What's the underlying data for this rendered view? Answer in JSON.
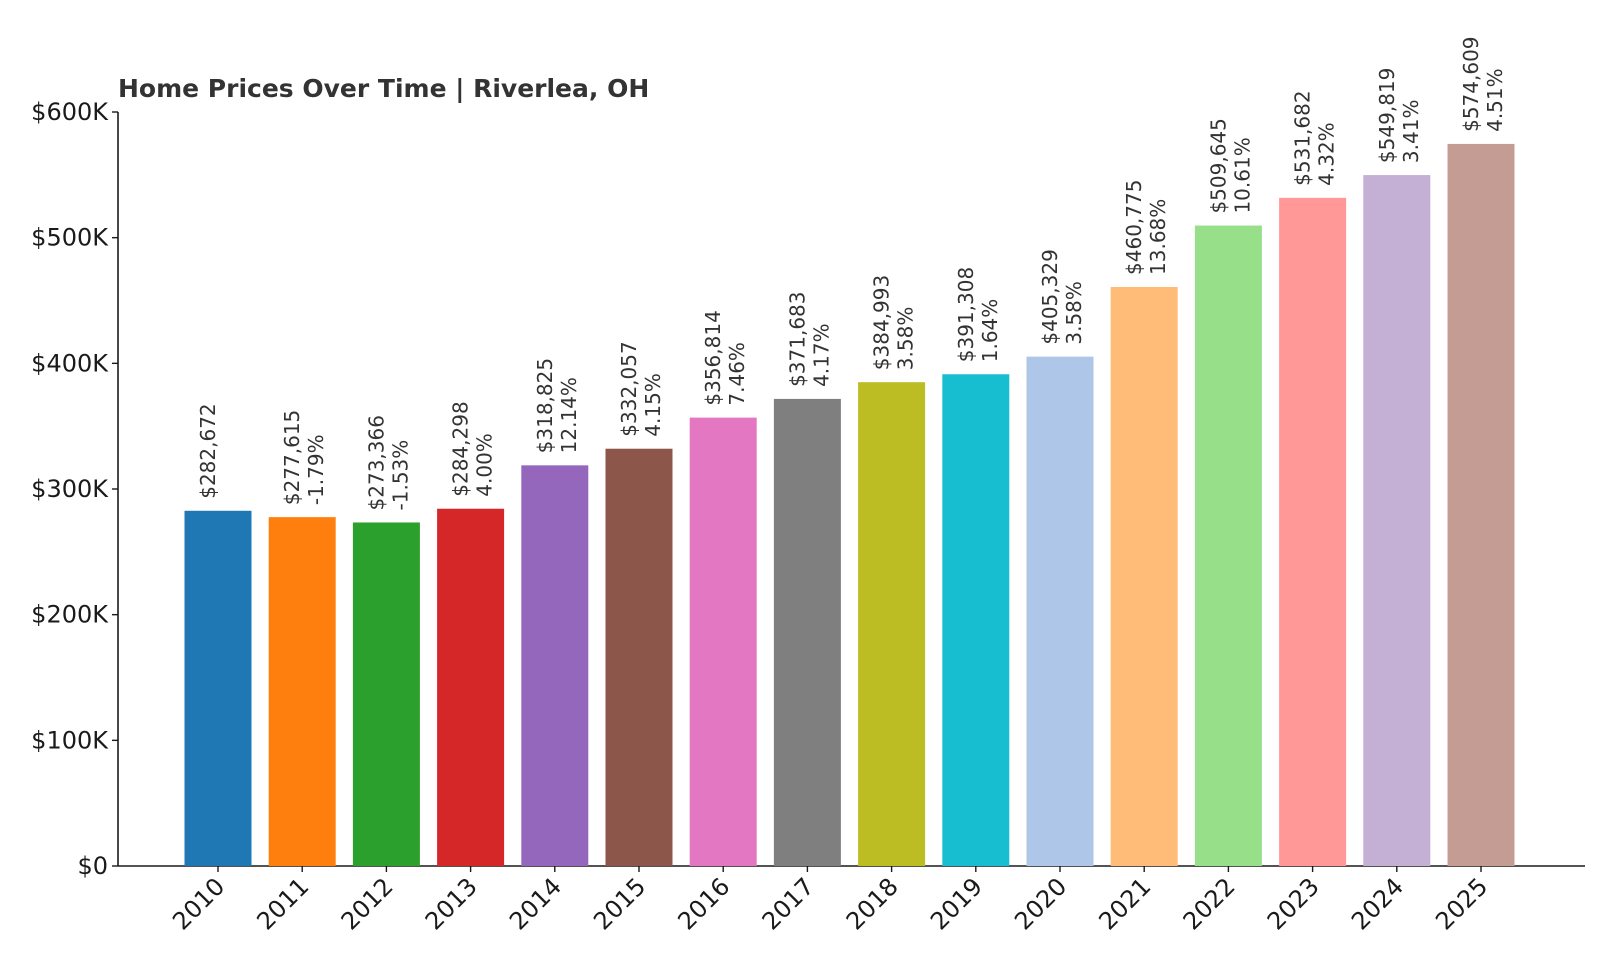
{
  "chart_data": {
    "type": "bar",
    "title": "Home Prices Over Time | Riverlea, OH",
    "xlabel": "",
    "ylabel": "",
    "ylim": [
      0,
      600000
    ],
    "yticks": [
      {
        "value": 0,
        "label": "$0"
      },
      {
        "value": 100000,
        "label": "$100K"
      },
      {
        "value": 200000,
        "label": "$200K"
      },
      {
        "value": 300000,
        "label": "$300K"
      },
      {
        "value": 400000,
        "label": "$400K"
      },
      {
        "value": 500000,
        "label": "$500K"
      },
      {
        "value": 600000,
        "label": "$600K"
      }
    ],
    "grid": false,
    "legend": "none",
    "categories": [
      "2010",
      "2011",
      "2012",
      "2013",
      "2014",
      "2015",
      "2016",
      "2017",
      "2018",
      "2019",
      "2020",
      "2021",
      "2022",
      "2023",
      "2024",
      "2025"
    ],
    "values": [
      282672,
      277615,
      273366,
      284298,
      318825,
      332057,
      356814,
      371683,
      384993,
      391308,
      405329,
      460775,
      509645,
      531682,
      549819,
      574609
    ],
    "value_labels": [
      "$282,672",
      "$277,615",
      "$273,366",
      "$284,298",
      "$318,825",
      "$332,057",
      "$356,814",
      "$371,683",
      "$384,993",
      "$391,308",
      "$405,329",
      "$460,775",
      "$509,645",
      "$531,682",
      "$549,819",
      "$574,609"
    ],
    "change_labels": [
      "",
      "-1.79%",
      "-1.53%",
      "4.00%",
      "12.14%",
      "4.15%",
      "7.46%",
      "4.17%",
      "3.58%",
      "1.64%",
      "3.58%",
      "13.68%",
      "10.61%",
      "4.32%",
      "3.41%",
      "4.51%"
    ],
    "colors": [
      "#1f77b4",
      "#ff7f0e",
      "#2ca02c",
      "#d62728",
      "#9467bd",
      "#8c564b",
      "#e377c2",
      "#7f7f7f",
      "#bcbd22",
      "#17becf",
      "#aec7e8",
      "#ffbb78",
      "#98df8a",
      "#ff9896",
      "#c5b0d5",
      "#c49c94"
    ]
  }
}
